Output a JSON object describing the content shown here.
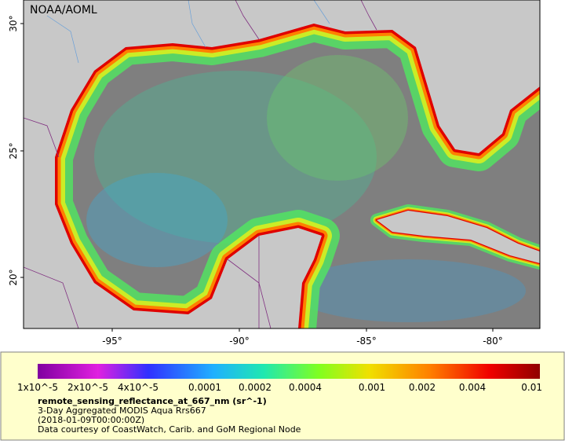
{
  "map": {
    "source": "NOAA/AOML",
    "lat_labels": [
      "30°",
      "25°",
      "20°"
    ],
    "lon_labels": [
      "-95°",
      "-90°",
      "-85°",
      "-80°"
    ]
  },
  "legend": {
    "scale_labels": [
      "1x10^-5",
      "2x10^-5",
      "4x10^-5",
      "0.0001",
      "0.0002",
      "0.0004",
      "0.001",
      "0.002",
      "0.004",
      "0.01"
    ],
    "variable": "remote_sensing_reflectance_at_667_nm (sr^-1)",
    "description": "3-Day Aggregated MODIS Aqua Rrs667",
    "time": "(2018-01-09T00:00:00Z)",
    "credit": "Data courtesy of CoastWatch, Carib. and GoM Regional Node"
  }
}
